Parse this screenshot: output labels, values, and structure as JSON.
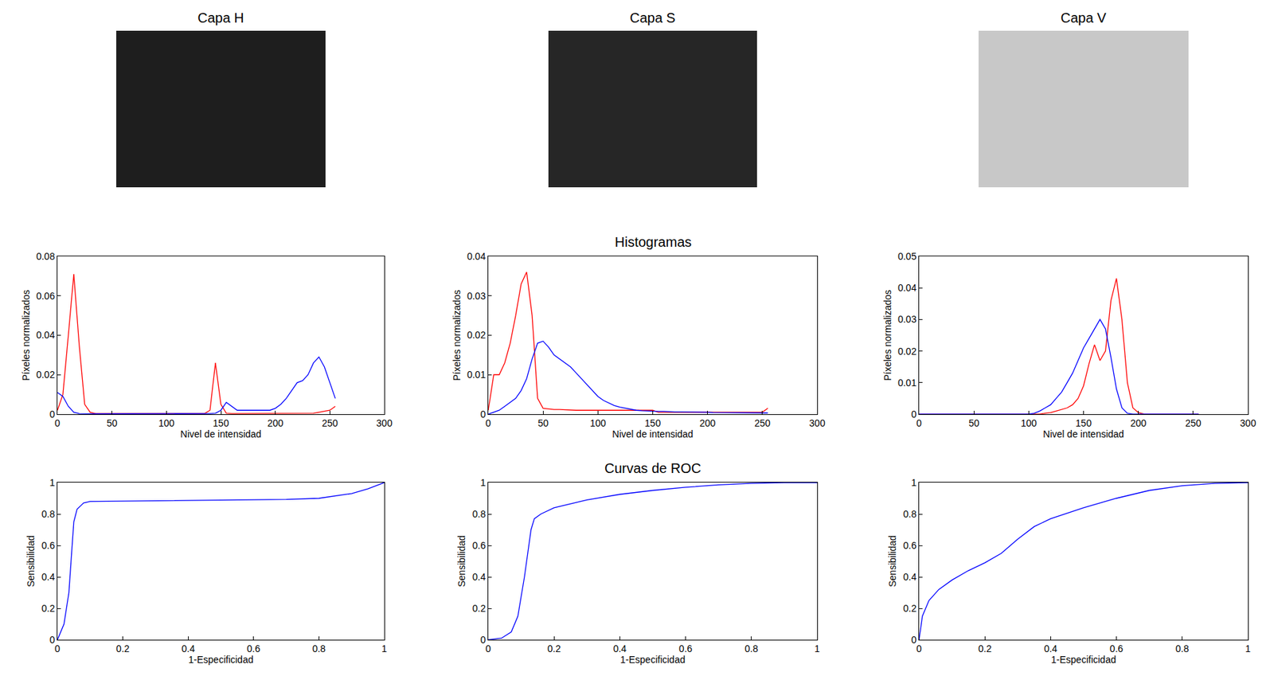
{
  "chart_data": [
    {
      "type": "image",
      "title": "Capa H",
      "color": "#1e1e1e"
    },
    {
      "type": "image",
      "title": "Capa S",
      "color": "#262626"
    },
    {
      "type": "image",
      "title": "Capa V",
      "color": "#c8c8c8"
    },
    {
      "type": "line",
      "x_label": "Nivel de intensidad",
      "y_label": "Píxeles normalizados",
      "x": [
        0,
        5,
        10,
        15,
        20,
        25,
        30,
        35,
        40,
        45,
        50,
        55,
        60,
        65,
        70,
        75,
        80,
        85,
        90,
        95,
        100,
        105,
        110,
        115,
        120,
        125,
        130,
        135,
        140,
        145,
        150,
        155,
        160,
        165,
        170,
        175,
        180,
        185,
        190,
        195,
        200,
        205,
        210,
        215,
        220,
        225,
        230,
        235,
        240,
        245,
        250,
        255
      ],
      "series": [
        {
          "color": "#ff0000",
          "values": [
            0.002,
            0.01,
            0.04,
            0.071,
            0.035,
            0.005,
            0.001,
            0.0003,
            0.0003,
            0.0003,
            0.0003,
            0.0003,
            0.0003,
            0.0003,
            0.0003,
            0.0003,
            0.0003,
            0.0003,
            0.0003,
            0.0003,
            0.0003,
            0.0003,
            0.0003,
            0.0003,
            0.0003,
            0.0003,
            0.0003,
            0.0003,
            0.002,
            0.026,
            0.005,
            0.0005,
            0.0003,
            0.0003,
            0.0003,
            0.0003,
            0.0003,
            0.0003,
            0.0003,
            0.0003,
            0.0003,
            0.0003,
            0.0003,
            0.0003,
            0.0003,
            0.0003,
            0.0003,
            0.0005,
            0.001,
            0.0015,
            0.002,
            0.004
          ]
        },
        {
          "color": "#0000ff",
          "values": [
            0.011,
            0.009,
            0.004,
            0.001,
            0.0003,
            0.0002,
            0.0002,
            0.0002,
            0.0002,
            0.0002,
            0.0002,
            0.0002,
            0.0002,
            0.0002,
            0.0002,
            0.0002,
            0.0002,
            0.0002,
            0.0002,
            0.0002,
            0.0002,
            0.0002,
            0.0002,
            0.0002,
            0.0002,
            0.0002,
            0.0002,
            0.0002,
            0.0003,
            0.0005,
            0.002,
            0.006,
            0.004,
            0.002,
            0.002,
            0.002,
            0.002,
            0.002,
            0.002,
            0.002,
            0.003,
            0.005,
            0.008,
            0.012,
            0.016,
            0.017,
            0.02,
            0.026,
            0.029,
            0.024,
            0.016,
            0.008
          ]
        }
      ],
      "xlim": [
        0,
        300
      ],
      "xticks": [
        0,
        50,
        100,
        150,
        200,
        250,
        300
      ],
      "ylim": [
        0,
        0.08
      ],
      "yticks": [
        0,
        0.02,
        0.04,
        0.06,
        0.08
      ],
      "grid": false
    },
    {
      "type": "line",
      "title": "Histogramas",
      "x_label": "Nivel de intensidad",
      "y_label": "Píxeles normalizados",
      "x": [
        0,
        5,
        10,
        15,
        20,
        25,
        30,
        35,
        40,
        45,
        50,
        55,
        60,
        65,
        70,
        75,
        80,
        85,
        90,
        95,
        100,
        105,
        110,
        115,
        120,
        125,
        130,
        135,
        140,
        145,
        150,
        155,
        160,
        165,
        170,
        175,
        180,
        185,
        190,
        195,
        200,
        205,
        210,
        215,
        220,
        225,
        230,
        235,
        240,
        245,
        250,
        255
      ],
      "series": [
        {
          "color": "#ff0000",
          "values": [
            0.001,
            0.01,
            0.01,
            0.013,
            0.018,
            0.025,
            0.033,
            0.036,
            0.025,
            0.004,
            0.0015,
            0.0013,
            0.0012,
            0.0012,
            0.0011,
            0.0011,
            0.001,
            0.001,
            0.001,
            0.001,
            0.001,
            0.001,
            0.001,
            0.001,
            0.001,
            0.001,
            0.001,
            0.001,
            0.001,
            0.001,
            0.001,
            0.0005,
            0.0005,
            0.0005,
            0.0005,
            0.0005,
            0.0005,
            0.0005,
            0.0005,
            0.0005,
            0.0005,
            0.0005,
            0.0005,
            0.0005,
            0.0005,
            0.0005,
            0.0005,
            0.0005,
            0.0005,
            0.0005,
            0.0005,
            0.0015
          ]
        },
        {
          "color": "#0000ff",
          "values": [
            0,
            0.0005,
            0.001,
            0.002,
            0.003,
            0.004,
            0.006,
            0.009,
            0.014,
            0.018,
            0.0185,
            0.017,
            0.015,
            0.014,
            0.013,
            0.012,
            0.0105,
            0.009,
            0.0075,
            0.006,
            0.0045,
            0.0035,
            0.0028,
            0.0022,
            0.0018,
            0.0015,
            0.0012,
            0.001,
            0.0009,
            0.0008,
            0.0007,
            0.0007,
            0.0007,
            0.0006,
            0.0006,
            0.0006,
            0.0006,
            0.0005,
            0.0005,
            0.0005,
            0.0005,
            0.0004,
            0.0004,
            0.0004,
            0.0004,
            0.0004,
            0.0004,
            0.0004,
            0.0004,
            0.0004,
            0.0004,
            0.0003
          ]
        }
      ],
      "xlim": [
        0,
        300
      ],
      "xticks": [
        0,
        50,
        100,
        150,
        200,
        250,
        300
      ],
      "ylim": [
        0,
        0.04
      ],
      "yticks": [
        0,
        0.01,
        0.02,
        0.03,
        0.04
      ],
      "grid": false
    },
    {
      "type": "line",
      "x_label": "Nivel de intensidad",
      "y_label": "Píxeles normalizados",
      "x": [
        0,
        5,
        10,
        15,
        20,
        25,
        30,
        35,
        40,
        45,
        50,
        55,
        60,
        65,
        70,
        75,
        80,
        85,
        90,
        95,
        100,
        105,
        110,
        115,
        120,
        125,
        130,
        135,
        140,
        145,
        150,
        155,
        160,
        165,
        170,
        175,
        180,
        185,
        190,
        195,
        200,
        205,
        210,
        215,
        220,
        225,
        230,
        235,
        240,
        245,
        250,
        255
      ],
      "series": [
        {
          "color": "#ff0000",
          "values": [
            0,
            0,
            0,
            0,
            0,
            0,
            0,
            0,
            0,
            0,
            0,
            0,
            0,
            0,
            0,
            0,
            0,
            0,
            0,
            0,
            0,
            0,
            0,
            0.0003,
            0.0005,
            0.001,
            0.0015,
            0.002,
            0.003,
            0.005,
            0.009,
            0.016,
            0.022,
            0.017,
            0.02,
            0.036,
            0.043,
            0.03,
            0.01,
            0.002,
            0.0005,
            0.0001,
            0,
            0,
            0,
            0,
            0,
            0,
            0,
            0,
            0,
            0
          ]
        },
        {
          "color": "#0000ff",
          "values": [
            0,
            0,
            0,
            0,
            0,
            0,
            0,
            0,
            0,
            0,
            0,
            0,
            0,
            0,
            0,
            0,
            0,
            0,
            0,
            0,
            0,
            0.0003,
            0.001,
            0.002,
            0.003,
            0.005,
            0.007,
            0.01,
            0.013,
            0.017,
            0.021,
            0.024,
            0.027,
            0.03,
            0.027,
            0.018,
            0.008,
            0.002,
            0.0003,
            0,
            0,
            0,
            0,
            0,
            0,
            0,
            0,
            0,
            0,
            0,
            0,
            0
          ]
        }
      ],
      "xlim": [
        0,
        300
      ],
      "xticks": [
        0,
        50,
        100,
        150,
        200,
        250,
        300
      ],
      "ylim": [
        0,
        0.05
      ],
      "yticks": [
        0,
        0.01,
        0.02,
        0.03,
        0.04,
        0.05
      ],
      "grid": false
    },
    {
      "type": "line",
      "x_label": "1-Especificidad",
      "y_label": "Sensibilidad",
      "x": [
        0,
        0.02,
        0.035,
        0.045,
        0.05,
        0.06,
        0.08,
        0.1,
        0.2,
        0.4,
        0.6,
        0.7,
        0.8,
        0.9,
        0.95,
        1
      ],
      "series": [
        {
          "color": "#0000ff",
          "values": [
            0,
            0.1,
            0.3,
            0.6,
            0.75,
            0.83,
            0.87,
            0.88,
            0.882,
            0.885,
            0.89,
            0.893,
            0.9,
            0.93,
            0.96,
            1
          ]
        }
      ],
      "xlim": [
        0,
        1
      ],
      "xticks": [
        0,
        0.2,
        0.4,
        0.6,
        0.8,
        1
      ],
      "ylim": [
        0,
        1
      ],
      "yticks": [
        0,
        0.2,
        0.4,
        0.6,
        0.8,
        1
      ],
      "grid": false
    },
    {
      "type": "line",
      "title": "Curvas de ROC",
      "x_label": "1-Especificidad",
      "y_label": "Sensibilidad",
      "x": [
        0,
        0.04,
        0.07,
        0.09,
        0.11,
        0.13,
        0.14,
        0.16,
        0.2,
        0.3,
        0.4,
        0.5,
        0.6,
        0.7,
        0.8,
        0.9,
        1
      ],
      "series": [
        {
          "color": "#0000ff",
          "values": [
            0,
            0.01,
            0.05,
            0.15,
            0.4,
            0.7,
            0.77,
            0.8,
            0.84,
            0.89,
            0.925,
            0.95,
            0.97,
            0.985,
            0.995,
            1,
            1
          ]
        }
      ],
      "xlim": [
        0,
        1
      ],
      "xticks": [
        0,
        0.2,
        0.4,
        0.6,
        0.8,
        1
      ],
      "ylim": [
        0,
        1
      ],
      "yticks": [
        0,
        0.2,
        0.4,
        0.6,
        0.8,
        1
      ],
      "grid": false
    },
    {
      "type": "line",
      "x_label": "1-Especificidad",
      "y_label": "Sensibilidad",
      "x": [
        0,
        0.01,
        0.03,
        0.06,
        0.1,
        0.15,
        0.2,
        0.25,
        0.3,
        0.35,
        0.4,
        0.5,
        0.6,
        0.7,
        0.8,
        0.9,
        1
      ],
      "series": [
        {
          "color": "#0000ff",
          "values": [
            0,
            0.15,
            0.25,
            0.32,
            0.38,
            0.44,
            0.49,
            0.55,
            0.64,
            0.72,
            0.77,
            0.84,
            0.9,
            0.95,
            0.98,
            0.995,
            1
          ]
        }
      ],
      "xlim": [
        0,
        1
      ],
      "xticks": [
        0,
        0.2,
        0.4,
        0.6,
        0.8,
        1
      ],
      "ylim": [
        0,
        1
      ],
      "yticks": [
        0,
        0.2,
        0.4,
        0.6,
        0.8,
        1
      ],
      "grid": false
    }
  ]
}
